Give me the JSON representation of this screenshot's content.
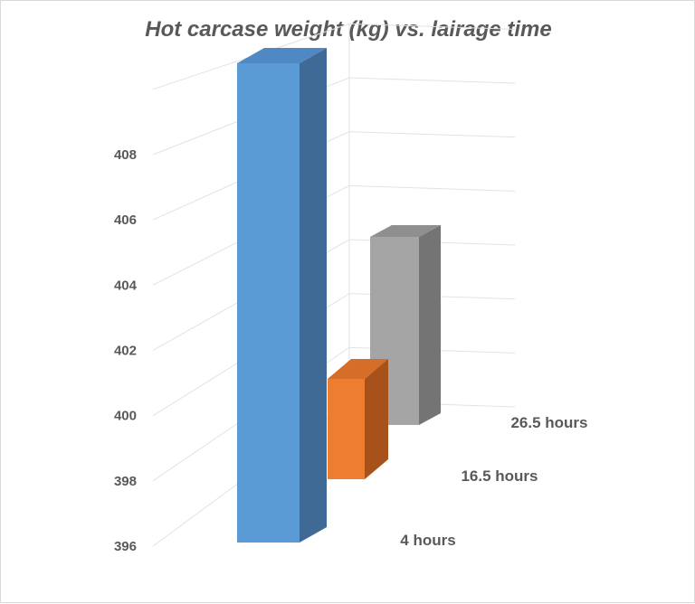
{
  "chart_data": {
    "type": "bar",
    "title": "Hot carcase weight (kg) vs. lairage time",
    "xlabel": "",
    "ylabel": "",
    "categories": [
      "4 hours",
      "16.5 hours",
      "26.5 hours"
    ],
    "values": [
      407.7,
      399.0,
      401.7
    ],
    "ylim": [
      396,
      408
    ],
    "yticks": [
      "396",
      "398",
      "400",
      "402",
      "404",
      "406",
      "408"
    ],
    "colors": [
      "#5b9bd5",
      "#ed7d31",
      "#a5a5a5"
    ],
    "grid": true,
    "legend": "none",
    "style": "3d-column"
  }
}
